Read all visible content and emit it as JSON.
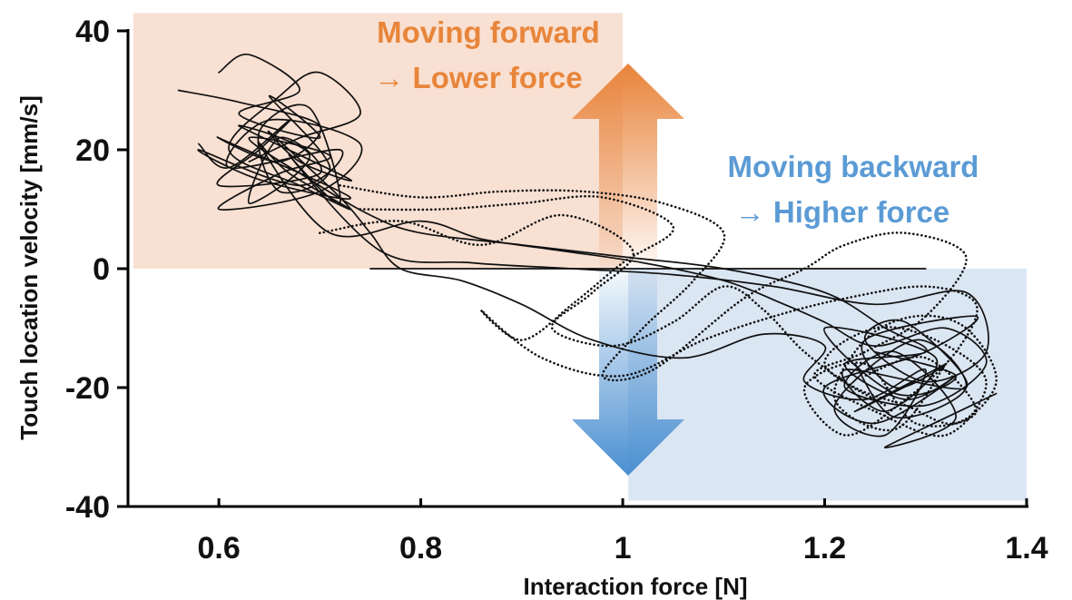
{
  "chart_data": {
    "type": "line",
    "xlabel": "Interaction force [N]",
    "ylabel": "Touch location velocity [mm/s]",
    "xlim": [
      0.51,
      1.4
    ],
    "ylim": [
      -40,
      40
    ],
    "x_ticks": [
      {
        "value": 0.6,
        "label": "0.6"
      },
      {
        "value": 0.8,
        "label": "0.8"
      },
      {
        "value": 1.0,
        "label": "1"
      },
      {
        "value": 1.2,
        "label": "1.2"
      },
      {
        "value": 1.4,
        "label": "1.4"
      }
    ],
    "y_ticks": [
      {
        "value": 40,
        "label": "40"
      },
      {
        "value": 20,
        "label": "20"
      },
      {
        "value": 0,
        "label": "0"
      },
      {
        "value": -20,
        "label": "-20"
      },
      {
        "value": -40,
        "label": "-40"
      }
    ],
    "grid": false,
    "regions": [
      {
        "name": "forward",
        "x": [
          0.51,
          1.0
        ],
        "y": [
          0,
          43
        ],
        "color": "#f8e0d2"
      },
      {
        "name": "backward",
        "x": [
          1.0,
          1.4
        ],
        "y": [
          -39,
          0
        ],
        "color": "#dbe6f3"
      }
    ],
    "annotations": [
      {
        "id": "forward",
        "lines": [
          "Moving forward",
          "→ Lower force"
        ],
        "color": "#e8853a"
      },
      {
        "id": "backward",
        "lines": [
          "Moving backward",
          "→ Higher force"
        ],
        "color": "#5b9bd5"
      }
    ],
    "arrows": {
      "up_color": "#e8833a",
      "down_color": "#4a8fd1"
    },
    "series": [
      {
        "style": "solid",
        "x": [
          0.56,
          0.62,
          0.7,
          0.66,
          0.6,
          0.73,
          0.64,
          0.58,
          0.68,
          0.72,
          0.61,
          0.65,
          0.74,
          0.7,
          0.6,
          0.66,
          0.71,
          0.63,
          0.69,
          0.75,
          0.8,
          0.9,
          1.0,
          1.1,
          1.2,
          1.26,
          1.3,
          1.22,
          1.28,
          1.33,
          1.25,
          1.2,
          1.3,
          1.35,
          1.24,
          1.27,
          1.32,
          1.23,
          1.29
        ],
        "y": [
          30,
          28,
          24,
          18,
          22,
          12,
          15,
          20,
          14,
          20,
          17,
          25,
          21,
          13,
          10,
          16,
          19,
          22,
          15,
          9,
          6,
          4,
          2,
          0,
          -4,
          -10,
          -14,
          -16,
          -22,
          -18,
          -26,
          -20,
          -14,
          -8,
          -12,
          -20,
          -16,
          -24,
          -19
        ]
      },
      {
        "style": "solid",
        "x": [
          0.6,
          0.63,
          0.68,
          0.62,
          0.7,
          0.65,
          0.71,
          0.66,
          0.64,
          0.69,
          0.72,
          0.67,
          0.76,
          0.85,
          0.95,
          1.05,
          1.15,
          1.25,
          1.34,
          1.36,
          1.3,
          1.24,
          1.28,
          1.34,
          1.22,
          1.26,
          1.31,
          1.2,
          1.27,
          1.33,
          1.25
        ],
        "y": [
          33,
          36,
          30,
          26,
          22,
          29,
          17,
          13,
          23,
          27,
          11,
          19,
          3,
          1,
          0,
          -1,
          -3,
          -6,
          -4,
          -14,
          -19,
          -12,
          -9,
          -20,
          -17,
          -24,
          -15,
          -10,
          -21,
          -18,
          -14
        ]
      },
      {
        "style": "solid",
        "x": [
          0.58,
          0.61,
          0.67,
          0.64,
          0.6,
          0.7,
          0.66,
          0.63,
          0.69,
          0.62,
          0.73,
          0.68,
          0.65,
          0.72,
          0.75,
          0.78,
          0.84,
          0.9,
          0.97,
          1.06,
          1.14,
          1.2,
          1.18,
          1.24,
          1.3,
          1.26,
          1.21,
          1.29,
          1.34,
          1.27,
          1.23
        ],
        "y": [
          21,
          17,
          25,
          20,
          14,
          16,
          22,
          11,
          19,
          24,
          15,
          18,
          23,
          12,
          6,
          0,
          -2,
          -6,
          -12,
          -15,
          -11,
          -13,
          -19,
          -22,
          -17,
          -28,
          -23,
          -12,
          -20,
          -25,
          -16
        ]
      },
      {
        "style": "solid",
        "x": [
          0.75,
          0.85,
          0.95,
          1.05,
          1.15,
          1.25,
          1.3
        ],
        "y": [
          0,
          0,
          0,
          0,
          0,
          0,
          0
        ]
      },
      {
        "style": "solid",
        "x": [
          0.63,
          0.68,
          0.74,
          0.7,
          0.66,
          0.61,
          0.68,
          0.73,
          0.67,
          0.64,
          0.71,
          0.8,
          0.86,
          0.94,
          1.02,
          1.1,
          1.16,
          1.2,
          1.25,
          1.32,
          1.36,
          1.3,
          1.22,
          1.27,
          1.33,
          1.26,
          1.37
        ],
        "y": [
          18,
          22,
          26,
          33,
          29,
          20,
          14,
          10,
          16,
          21,
          6,
          8,
          5,
          3,
          1,
          -2,
          -6,
          -9,
          -13,
          -10,
          -16,
          -23,
          -20,
          -14,
          -25,
          -30,
          -21
        ]
      },
      {
        "style": "dotted",
        "x": [
          0.72,
          0.8,
          0.88,
          0.96,
          1.04,
          1.1,
          1.07,
          1.02,
          0.98,
          1.03,
          1.12,
          1.18,
          1.22,
          1.28,
          1.34,
          1.3,
          1.24,
          1.19,
          1.25,
          1.32,
          1.36,
          1.31,
          1.25,
          1.2,
          1.26
        ],
        "y": [
          14,
          12,
          13,
          13,
          11,
          6,
          -2,
          -10,
          -18,
          -17,
          -5,
          0,
          4,
          6,
          2,
          -8,
          -14,
          -18,
          -24,
          -28,
          -19,
          -12,
          -10,
          -16,
          -23
        ]
      },
      {
        "style": "dotted",
        "x": [
          0.74,
          0.82,
          0.9,
          0.98,
          1.05,
          1.0,
          0.95,
          0.9,
          0.86,
          0.92,
          1.0,
          1.08,
          1.15,
          1.22,
          1.3,
          1.35,
          1.33,
          1.28,
          1.22,
          1.18,
          1.24,
          1.29,
          1.35,
          1.3,
          1.24
        ],
        "y": [
          10,
          10,
          11,
          12,
          7,
          1,
          -6,
          -12,
          -7,
          -15,
          -18,
          -12,
          -8,
          -5,
          -3,
          -6,
          -14,
          -22,
          -28,
          -20,
          -16,
          -26,
          -24,
          -15,
          -18
        ]
      },
      {
        "style": "dotted",
        "x": [
          0.7,
          0.78,
          0.86,
          0.94,
          1.01,
          0.97,
          0.93,
          0.99,
          1.05,
          1.1,
          1.14,
          1.18,
          1.23,
          1.28,
          1.33,
          1.37,
          1.34,
          1.29,
          1.24,
          1.21,
          1.27,
          1.32
        ],
        "y": [
          6,
          8,
          4,
          9,
          3,
          -4,
          -10,
          -13,
          -9,
          -3,
          -7,
          -14,
          -20,
          -23,
          -26,
          -19,
          -10,
          -8,
          -12,
          -22,
          -27,
          -16
        ]
      }
    ]
  }
}
